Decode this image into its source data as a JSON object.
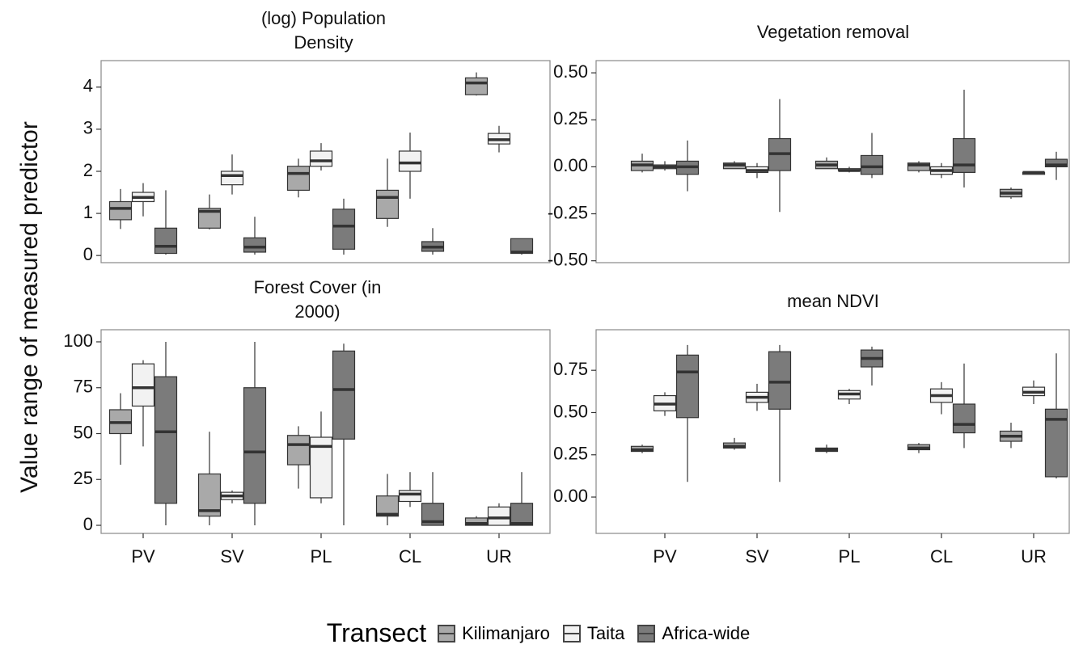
{
  "ylabel": "Value range of measured predictor",
  "legend": {
    "title": "Transect",
    "entries": [
      {
        "name": "Kilimanjaro",
        "color": "#a9a9a9"
      },
      {
        "name": "Taita",
        "color": "#f2f2f2"
      },
      {
        "name": "Africa-wide",
        "color": "#7b7b7b"
      }
    ]
  },
  "chart_data": [
    {
      "type": "box",
      "title": "(log) Population Density",
      "ylim": [
        -0.17,
        4.63
      ],
      "yticks": [
        0,
        1,
        2,
        3,
        4
      ],
      "series": [
        {
          "values": [
            [
              0.63,
              0.85,
              1.12,
              1.28,
              1.58
            ],
            [
              0.62,
              0.65,
              1.05,
              1.12,
              1.45
            ],
            [
              1.38,
              1.55,
              1.95,
              2.12,
              2.3
            ],
            [
              0.68,
              0.88,
              1.38,
              1.55,
              2.3
            ],
            [
              3.8,
              3.82,
              4.1,
              4.22,
              4.35
            ]
          ]
        },
        {
          "values": [
            [
              0.93,
              1.28,
              1.38,
              1.5,
              1.72
            ],
            [
              1.45,
              1.68,
              1.9,
              2.0,
              2.4
            ],
            [
              2.02,
              2.12,
              2.25,
              2.48,
              2.67
            ],
            [
              1.35,
              2.0,
              2.2,
              2.48,
              2.92
            ],
            [
              2.45,
              2.65,
              2.75,
              2.9,
              3.08
            ]
          ]
        },
        {
          "values": [
            [
              0.02,
              0.05,
              0.22,
              0.65,
              1.55
            ],
            [
              0.02,
              0.08,
              0.2,
              0.42,
              0.92
            ],
            [
              0.02,
              0.15,
              0.7,
              1.1,
              1.35
            ],
            [
              0.02,
              0.1,
              0.2,
              0.33,
              0.65
            ],
            [
              0.02,
              0.05,
              0.08,
              0.4,
              0.4
            ]
          ]
        }
      ]
    },
    {
      "type": "box",
      "title": "Vegetation removal",
      "ylim": [
        -0.51,
        0.565
      ],
      "yticks": [
        {
          "value": -0.5,
          "label": "-0.50"
        },
        {
          "value": -0.25,
          "label": "-0.25"
        },
        {
          "value": 0,
          "label": "0.00"
        },
        {
          "value": 0.25,
          "label": "0.25"
        },
        {
          "value": 0.5,
          "label": "0.50"
        }
      ],
      "series": [
        {
          "values": [
            [
              -0.03,
              -0.02,
              0.01,
              0.03,
              0.07
            ],
            [
              -0.01,
              -0.01,
              0.01,
              0.02,
              0.03
            ],
            [
              -0.01,
              -0.01,
              0.01,
              0.03,
              0.05
            ],
            [
              -0.03,
              -0.02,
              0.01,
              0.02,
              0.03
            ],
            [
              -0.17,
              -0.16,
              -0.14,
              -0.12,
              -0.11
            ]
          ]
        },
        {
          "values": [
            [
              -0.02,
              -0.01,
              0,
              0.01,
              0.03
            ],
            [
              -0.06,
              -0.03,
              -0.02,
              0,
              0.02
            ],
            [
              -0.03,
              -0.02,
              -0.02,
              -0.01,
              0
            ],
            [
              -0.06,
              -0.04,
              -0.02,
              0,
              0.02
            ],
            [
              -0.04,
              -0.04,
              -0.03,
              -0.03,
              -0.03
            ]
          ]
        },
        {
          "values": [
            [
              -0.13,
              -0.04,
              0,
              0.03,
              0.14
            ],
            [
              -0.24,
              -0.02,
              0.07,
              0.15,
              0.36
            ],
            [
              -0.06,
              -0.04,
              0,
              0.06,
              0.18
            ],
            [
              -0.11,
              -0.03,
              0.01,
              0.15,
              0.41
            ],
            [
              -0.07,
              0,
              0.01,
              0.04,
              0.08
            ]
          ]
        }
      ]
    },
    {
      "type": "box",
      "title": "Forest Cover (in 2000)",
      "categories": [
        "PV",
        "SV",
        "PL",
        "CL",
        "UR"
      ],
      "ylim": [
        -4.4,
        106.6
      ],
      "yticks": [
        0,
        25,
        50,
        75,
        100
      ],
      "series": [
        {
          "values": [
            [
              33,
              50,
              56,
              63,
              72
            ],
            [
              0,
              5,
              8,
              28,
              51
            ],
            [
              20,
              33,
              44,
              49,
              54
            ],
            [
              0,
              5,
              6,
              16,
              28
            ],
            [
              0,
              0,
              1,
              4,
              5
            ]
          ]
        },
        {
          "values": [
            [
              43,
              65,
              75,
              88,
              90
            ],
            [
              12,
              14,
              16,
              18,
              19
            ],
            [
              12,
              15,
              43,
              48,
              62
            ],
            [
              10,
              13,
              17,
              19,
              29
            ],
            [
              0,
              0,
              4,
              10,
              12
            ]
          ]
        },
        {
          "values": [
            [
              0,
              12,
              51,
              81,
              100
            ],
            [
              0,
              12,
              40,
              75,
              100
            ],
            [
              0,
              47,
              74,
              95,
              99
            ],
            [
              0,
              0,
              2,
              12,
              29
            ],
            [
              0,
              0,
              1,
              12,
              29
            ]
          ]
        }
      ]
    },
    {
      "type": "box",
      "title": "mean NDVI",
      "categories": [
        "PV",
        "SV",
        "PL",
        "CL",
        "UR"
      ],
      "ylim": [
        -0.215,
        0.99
      ],
      "yticks": [
        {
          "value": 0,
          "label": "0.00"
        },
        {
          "value": 0.25,
          "label": "0.25"
        },
        {
          "value": 0.5,
          "label": "0.50"
        },
        {
          "value": 0.75,
          "label": "0.75"
        }
      ],
      "series": [
        {
          "values": [
            [
              0.26,
              0.27,
              0.28,
              0.3,
              0.31
            ],
            [
              0.28,
              0.29,
              0.3,
              0.32,
              0.35
            ],
            [
              0.26,
              0.27,
              0.28,
              0.29,
              0.31
            ],
            [
              0.26,
              0.28,
              0.29,
              0.31,
              0.32
            ],
            [
              0.29,
              0.33,
              0.36,
              0.39,
              0.44
            ]
          ]
        },
        {
          "values": [
            [
              0.48,
              0.51,
              0.55,
              0.6,
              0.62
            ],
            [
              0.51,
              0.56,
              0.59,
              0.62,
              0.67
            ],
            [
              0.55,
              0.58,
              0.61,
              0.63,
              0.64
            ],
            [
              0.49,
              0.56,
              0.6,
              0.64,
              0.68
            ],
            [
              0.55,
              0.6,
              0.62,
              0.65,
              0.69
            ]
          ]
        },
        {
          "values": [
            [
              0.09,
              0.47,
              0.74,
              0.84,
              0.9
            ],
            [
              0.09,
              0.52,
              0.68,
              0.86,
              0.9
            ],
            [
              0.66,
              0.77,
              0.82,
              0.87,
              0.89
            ],
            [
              0.29,
              0.38,
              0.43,
              0.55,
              0.79
            ],
            [
              0.11,
              0.12,
              0.46,
              0.52,
              0.85
            ]
          ]
        }
      ]
    }
  ]
}
